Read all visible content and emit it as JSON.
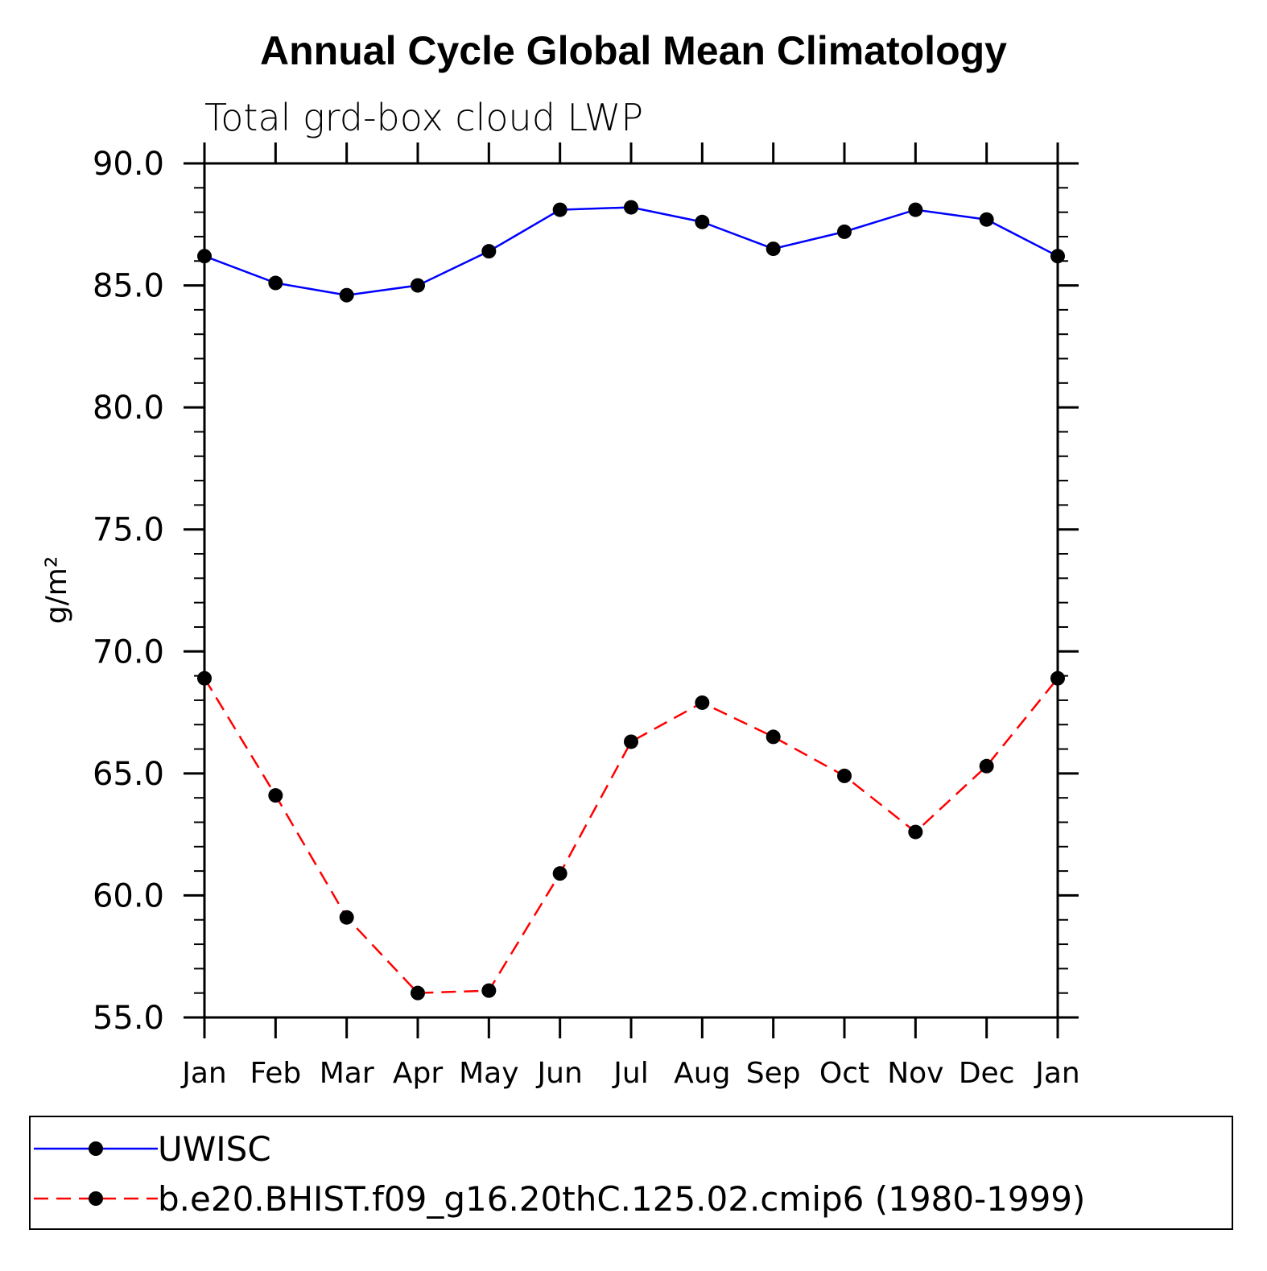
{
  "chart_data": {
    "type": "line",
    "title": "Annual Cycle Global Mean Climatology",
    "subtitle": "Total grd-box cloud LWP",
    "ylabel": "g/m²",
    "xlabel": "",
    "categories": [
      "Jan",
      "Feb",
      "Mar",
      "Apr",
      "May",
      "Jun",
      "Jul",
      "Aug",
      "Sep",
      "Oct",
      "Nov",
      "Dec",
      "Jan"
    ],
    "ylim": [
      55.0,
      90.0
    ],
    "yticks": [
      "55.0",
      "60.0",
      "65.0",
      "70.0",
      "75.0",
      "80.0",
      "85.0",
      "90.0"
    ],
    "grid": false,
    "legend_position": "bottom",
    "series": [
      {
        "name": "UWISC",
        "color": "#0000ff",
        "line_style": "solid",
        "marker": "filled-circle",
        "values": [
          86.2,
          85.1,
          84.6,
          85.0,
          86.4,
          88.1,
          88.2,
          87.6,
          86.5,
          87.2,
          88.1,
          87.7,
          86.2
        ]
      },
      {
        "name": "b.e20.BHIST.f09_g16.20thC.125.02.cmip6 (1980-1999)",
        "color": "#ff0000",
        "line_style": "dashed",
        "marker": "filled-circle",
        "values": [
          68.9,
          64.1,
          59.1,
          56.0,
          56.1,
          60.9,
          66.3,
          67.9,
          66.5,
          64.9,
          62.6,
          65.3,
          68.9
        ]
      }
    ]
  }
}
